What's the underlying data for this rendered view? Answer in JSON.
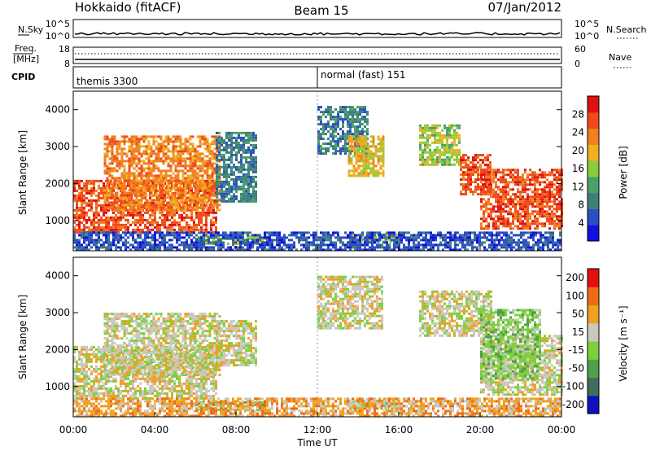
{
  "header": {
    "station": "Hokkaido (fitACF)",
    "beam": "Beam 15",
    "date": "07/Jan/2012"
  },
  "top_panels": {
    "nsky": {
      "label": "N.Sky",
      "ticks": [
        "10^5",
        "10^0"
      ],
      "right_ticks": [
        "10^5",
        "10^0"
      ],
      "right_label": "N.Search"
    },
    "freq": {
      "label_line1": "Freq.",
      "label_line2": "[MHz]",
      "ticks": [
        "18",
        "8"
      ],
      "right_ticks": [
        "60",
        "0"
      ],
      "right_label": "Nave"
    },
    "cpid": {
      "label": "CPID",
      "modes": [
        {
          "name": "themis 3300",
          "start_hour": 0
        },
        {
          "name": "normal (fast) 151",
          "start_hour": 12
        }
      ]
    }
  },
  "chart_data": [
    {
      "type": "heatmap",
      "quantity": "Power",
      "ylabel": "Slant Range [km]",
      "xlabel": "Time UT",
      "x_range_hours": [
        0,
        24
      ],
      "y_range_km": [
        180,
        4500
      ],
      "y_ticks": [
        1000,
        2000,
        3000,
        4000
      ],
      "x_tick_labels": [
        "00:00",
        "04:00",
        "08:00",
        "12:00",
        "16:00",
        "20:00",
        "00:00"
      ],
      "colorbar": {
        "label": "Power [dB]",
        "ticks": [
          "4",
          "8",
          "12",
          "16",
          "20",
          "24",
          "28"
        ],
        "colors": [
          "#1010e0",
          "#2a4fc0",
          "#3f7f7a",
          "#4aa06a",
          "#8acd3a",
          "#f0b020",
          "#f08020",
          "#f04a18",
          "#e01010"
        ]
      },
      "regions": [
        {
          "t0": 0.0,
          "t1": 7.0,
          "r0": 700,
          "r1": 2100,
          "level": 7
        },
        {
          "t0": 1.5,
          "t1": 7.2,
          "r0": 1300,
          "r1": 3300,
          "level": 6
        },
        {
          "t0": 7.0,
          "t1": 9.0,
          "r0": 1500,
          "r1": 3400,
          "level": 2
        },
        {
          "t0": 12.0,
          "t1": 14.5,
          "r0": 2800,
          "r1": 4100,
          "level": 2
        },
        {
          "t0": 13.5,
          "t1": 15.2,
          "r0": 2200,
          "r1": 3300,
          "level": 5
        },
        {
          "t0": 17.0,
          "t1": 19.0,
          "r0": 2500,
          "r1": 3600,
          "level": 4
        },
        {
          "t0": 19.0,
          "t1": 20.5,
          "r0": 1700,
          "r1": 2800,
          "level": 7
        },
        {
          "t0": 20.0,
          "t1": 24.0,
          "r0": 800,
          "r1": 2400,
          "level": 7
        },
        {
          "t0": 6.0,
          "t1": 9.5,
          "r0": 400,
          "r1": 600,
          "level": 4
        },
        {
          "t0": 13.5,
          "t1": 16.0,
          "r0": 430,
          "r1": 650,
          "level": 4
        },
        {
          "t0": 0.0,
          "t1": 24.0,
          "r0": 200,
          "r1": 700,
          "level": 1
        }
      ]
    },
    {
      "type": "heatmap",
      "quantity": "Velocity",
      "ylabel": "Slant Range [km]",
      "xlabel": "Time UT",
      "x_range_hours": [
        0,
        24
      ],
      "y_range_km": [
        180,
        4500
      ],
      "y_ticks": [
        1000,
        2000,
        3000,
        4000
      ],
      "x_tick_labels": [
        "00:00",
        "04:00",
        "08:00",
        "12:00",
        "16:00",
        "20:00",
        "00:00"
      ],
      "colorbar": {
        "label": "Velocity [m s⁻¹]",
        "ticks": [
          "200",
          "100",
          "50",
          "15",
          "-15",
          "-50",
          "-100",
          "-200"
        ],
        "colors": [
          "#1010c0",
          "#3f6f5a",
          "#4ea04a",
          "#7ed03a",
          "#c8c8c0",
          "#f0a020",
          "#f06a18",
          "#e01010"
        ]
      },
      "regions": [
        {
          "t0": 0.0,
          "t1": 7.0,
          "r0": 700,
          "r1": 2100,
          "level": 4
        },
        {
          "t0": 1.5,
          "t1": 7.2,
          "r0": 1300,
          "r1": 3000,
          "level": 4
        },
        {
          "t0": 7.0,
          "t1": 9.0,
          "r0": 1600,
          "r1": 2800,
          "level": 4
        },
        {
          "t0": 12.0,
          "t1": 15.2,
          "r0": 2600,
          "r1": 4000,
          "level": 4
        },
        {
          "t0": 17.0,
          "t1": 20.5,
          "r0": 2400,
          "r1": 3600,
          "level": 4
        },
        {
          "t0": 20.0,
          "t1": 24.0,
          "r0": 800,
          "r1": 2400,
          "level": 4
        },
        {
          "t0": 20.0,
          "t1": 23.0,
          "r0": 1200,
          "r1": 3100,
          "level": 3
        },
        {
          "t0": 6.0,
          "t1": 9.5,
          "r0": 400,
          "r1": 600,
          "level": 3
        },
        {
          "t0": 13.5,
          "t1": 16.0,
          "r0": 430,
          "r1": 650,
          "level": 3
        },
        {
          "t0": 0.0,
          "t1": 24.0,
          "r0": 200,
          "r1": 700,
          "level": 5
        }
      ]
    }
  ]
}
